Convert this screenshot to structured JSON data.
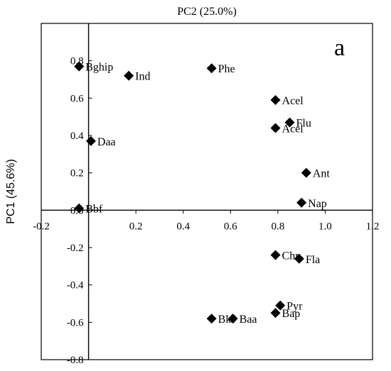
{
  "chart_data": {
    "type": "scatter",
    "panel_label": "a",
    "xlabel": "PC2 (25.0%)",
    "ylabel": "PC1 (45.6%)",
    "xlim": [
      -0.2,
      1.2
    ],
    "ylim": [
      -0.8,
      1.0
    ],
    "x_ticks": [
      -0.2,
      0.2,
      0.4,
      0.6,
      0.8,
      1.0,
      1.2
    ],
    "x_tick_labels": [
      "-0.2",
      "0.2",
      "0.4",
      "0.6",
      "0.8",
      "1.0",
      "1.2"
    ],
    "y_ticks": [
      -0.8,
      -0.6,
      -0.4,
      -0.2,
      0.0,
      0.2,
      0.4,
      0.6,
      0.8
    ],
    "y_tick_labels": [
      "-0.8",
      "-0.6",
      "-0.4",
      "-0.2",
      "0.0",
      "0.2",
      "0.4",
      "0.6",
      "0.8"
    ],
    "grid": false,
    "legend": "none",
    "marker": "diamond",
    "marker_color": "#000000",
    "points": [
      {
        "label": "Bghip",
        "x": -0.04,
        "y": 0.77
      },
      {
        "label": "Ind",
        "x": 0.17,
        "y": 0.72
      },
      {
        "label": "Daa",
        "x": 0.01,
        "y": 0.37
      },
      {
        "label": "Bbf",
        "x": -0.04,
        "y": 0.01
      },
      {
        "label": "Phe",
        "x": 0.52,
        "y": 0.76
      },
      {
        "label": "Acel",
        "x": 0.79,
        "y": 0.59
      },
      {
        "label": "Flu",
        "x": 0.85,
        "y": 0.47
      },
      {
        "label": "Acel",
        "x": 0.79,
        "y": 0.44
      },
      {
        "label": "Ant",
        "x": 0.92,
        "y": 0.2
      },
      {
        "label": "Nap",
        "x": 0.9,
        "y": 0.04
      },
      {
        "label": "Chr",
        "x": 0.79,
        "y": -0.24
      },
      {
        "label": "Fla",
        "x": 0.89,
        "y": -0.26
      },
      {
        "label": "Pyr",
        "x": 0.81,
        "y": -0.51
      },
      {
        "label": "Bap",
        "x": 0.79,
        "y": -0.55
      },
      {
        "label": "Bkf",
        "x": 0.52,
        "y": -0.58
      },
      {
        "label": "Baa",
        "x": 0.61,
        "y": -0.58
      }
    ]
  }
}
